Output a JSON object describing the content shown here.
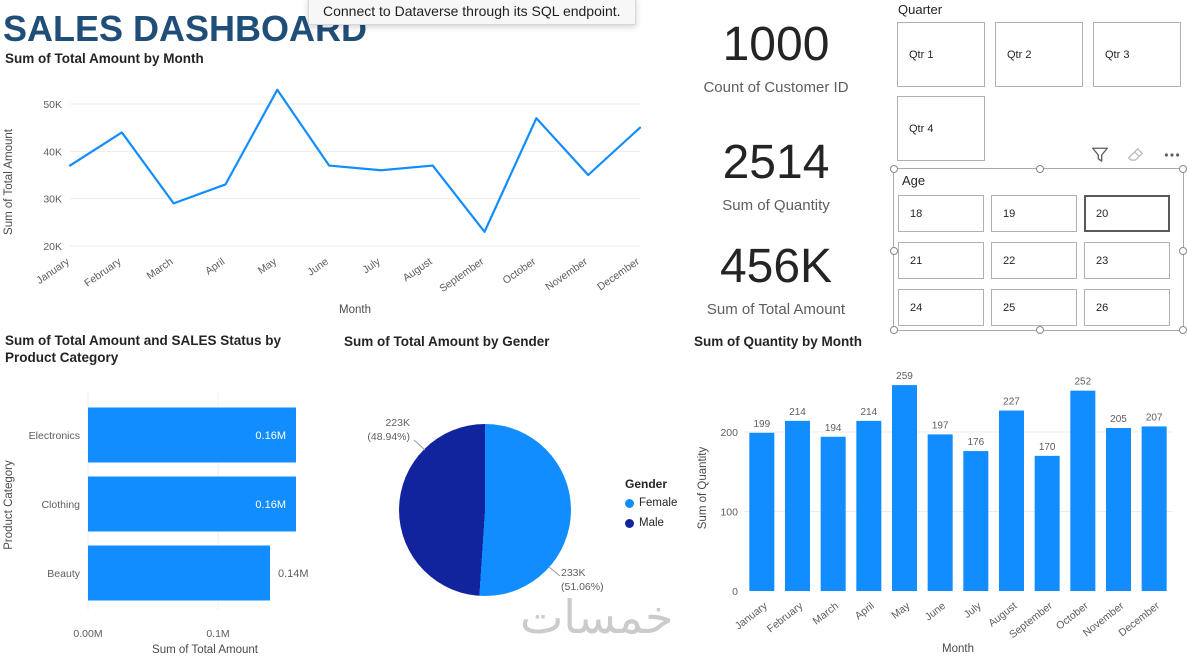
{
  "tooltip": "Connect to Dataverse through its SQL endpoint.",
  "title": "SALES DASHBOARD",
  "watermark": "خمسات",
  "kpis": [
    {
      "value": "1000",
      "label": "Count of Customer ID"
    },
    {
      "value": "2514",
      "label": "Sum of Quantity"
    },
    {
      "value": "456K",
      "label": "Sum of Total Amount"
    }
  ],
  "quarter_slicer": {
    "title": "Quarter",
    "options": [
      "Qtr 1",
      "Qtr 2",
      "Qtr 3",
      "Qtr 4"
    ]
  },
  "age_slicer": {
    "title": "Age",
    "options": [
      "18",
      "19",
      "20",
      "21",
      "22",
      "23",
      "24",
      "25",
      "26"
    ],
    "focused_option": "20"
  },
  "visual_toolbar": {
    "icons": [
      "filter-icon",
      "eraser-icon",
      "more-options-icon"
    ]
  },
  "chart_data": [
    {
      "type": "line",
      "title": "Sum of Total Amount by Month",
      "xlabel": "Month",
      "ylabel": "Sum of Total Amount",
      "categories": [
        "January",
        "February",
        "March",
        "April",
        "May",
        "June",
        "July",
        "August",
        "September",
        "October",
        "November",
        "December"
      ],
      "values": [
        37000,
        44000,
        29000,
        33000,
        53000,
        37000,
        36000,
        37000,
        23000,
        47000,
        35000,
        45000
      ],
      "ylim": [
        20000,
        55000
      ],
      "yticks": [
        20000,
        30000,
        40000,
        50000
      ],
      "ytick_labels": [
        "20K",
        "30K",
        "40K",
        "50K"
      ],
      "line_color": "#118DFF",
      "grid": true,
      "legend": "none"
    },
    {
      "type": "bar-horizontal",
      "title": "Sum of Total Amount and SALES Status by Product Category",
      "xlabel": "Sum of Total Amount",
      "ylabel": "Product Category",
      "categories": [
        "Electronics",
        "Clothing",
        "Beauty"
      ],
      "values": [
        0.16,
        0.16,
        0.14
      ],
      "bar_labels": [
        "0.16M",
        "0.16M",
        "0.14M"
      ],
      "label_inside": [
        true,
        true,
        false
      ],
      "xlim": [
        0,
        0.175
      ],
      "xticks": [
        0,
        0.1
      ],
      "xtick_labels": [
        "0.00M",
        "0.1M"
      ],
      "bar_color": "#118DFF"
    },
    {
      "type": "pie",
      "title": "Sum of Total Amount by Gender",
      "legend_title": "Gender",
      "legend_position": "right",
      "series": [
        {
          "name": "Female",
          "value": "233K",
          "pct": 51.06,
          "callout": [
            "233K",
            "(51.06%)"
          ],
          "color": "#118DFF"
        },
        {
          "name": "Male",
          "value": "223K",
          "pct": 48.94,
          "callout": [
            "223K",
            "(48.94%)"
          ],
          "color": "#12239E"
        }
      ]
    },
    {
      "type": "bar",
      "title": "Sum of Quantity by Month",
      "xlabel": "Month",
      "ylabel": "Sum of Quantity",
      "categories": [
        "January",
        "February",
        "March",
        "April",
        "May",
        "June",
        "July",
        "August",
        "September",
        "October",
        "November",
        "December"
      ],
      "values": [
        199,
        214,
        194,
        214,
        259,
        197,
        176,
        227,
        170,
        252,
        205,
        207
      ],
      "ylim": [
        0,
        275
      ],
      "yticks": [
        0,
        100,
        200
      ],
      "bar_color": "#118DFF"
    }
  ]
}
